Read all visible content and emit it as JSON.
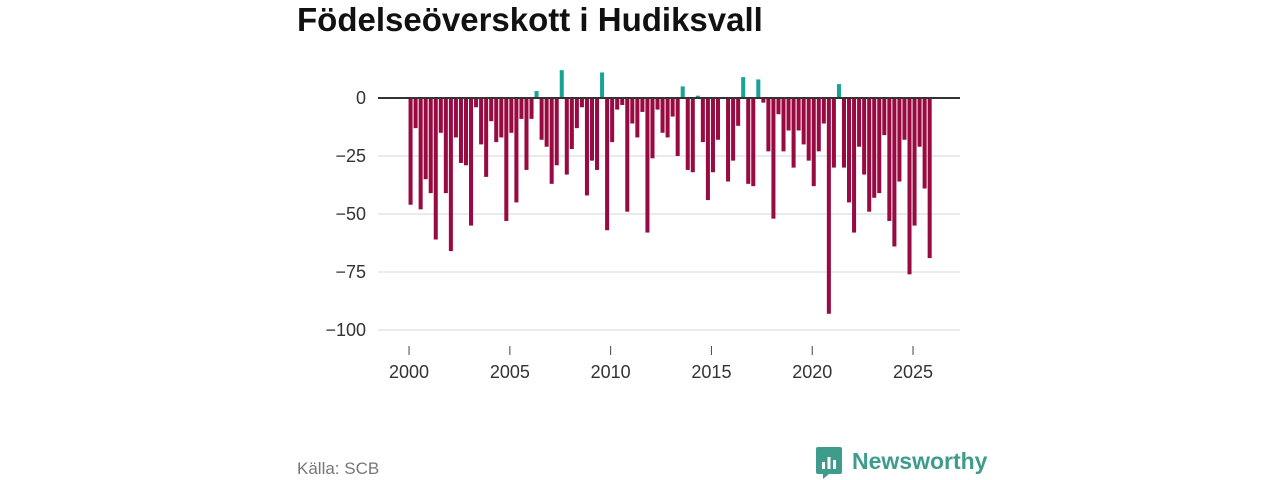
{
  "source": "Källa: SCB",
  "brand": {
    "name": "Newsworthy",
    "icon": "newsworthy-logo-icon"
  },
  "colors": {
    "negative": "#990a42",
    "positive": "#17a396",
    "zero_line": "#333333",
    "gridline": "#dddddd",
    "tick": "#444444",
    "brand": "#3f9c8d"
  },
  "chart_data": {
    "type": "bar",
    "title": "Födelseöverskott i Hudiksvall",
    "xlabel": "",
    "ylabel": "",
    "x_start": 2000,
    "x_step": 0.25,
    "values": [
      -46,
      -13,
      -48,
      -35,
      -41,
      -61,
      -15,
      -41,
      -66,
      -17,
      -28,
      -29,
      -55,
      -4,
      -20,
      -34,
      -10,
      -19,
      -17,
      -53,
      -15,
      -45,
      -9,
      -31,
      -9,
      3,
      -18,
      -21,
      -37,
      -29,
      12,
      -33,
      -22,
      -13,
      -4,
      -42,
      -27,
      -31,
      11,
      -57,
      -19,
      -5,
      -3,
      -49,
      -11,
      -17,
      -6,
      -58,
      -26,
      -5,
      -15,
      -17,
      -8,
      -25,
      5,
      -31,
      -32,
      1,
      -19,
      -44,
      -32,
      -18,
      0,
      -36,
      -27,
      -12,
      9,
      -37,
      -38,
      8,
      -2,
      -23,
      -52,
      -7,
      -23,
      -14,
      -30,
      -14,
      -20,
      -27,
      -38,
      -23,
      -11,
      -93,
      -30,
      6,
      -30,
      -45,
      -58,
      -21,
      -33,
      -49,
      -43,
      -41,
      -16,
      -53,
      -64,
      -36,
      -18,
      -76,
      -55,
      -21,
      -39,
      -69
    ],
    "yticks": [
      0,
      -25,
      -50,
      -75,
      -100
    ],
    "ytick_labels": [
      "0",
      "−25",
      "−50",
      "−75",
      "−100"
    ],
    "xticks": [
      2000,
      2005,
      2010,
      2015,
      2020,
      2025
    ],
    "xtick_labels": [
      "2000",
      "2005",
      "2010",
      "2015",
      "2020",
      "2025"
    ],
    "xlim": [
      1998.46,
      2027.33
    ],
    "ylim": [
      -110,
      15
    ],
    "grid": true,
    "legend": "none"
  }
}
